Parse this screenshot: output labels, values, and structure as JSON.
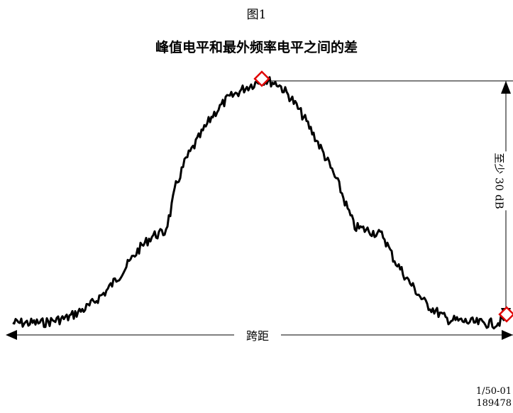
{
  "figure": {
    "label": "图1",
    "title": "峰值电平和最外频率电平之间的差",
    "span_label": "跨距",
    "level_label": "至少 30 dB",
    "ref_code_line1": "1/50-01",
    "ref_code_line2": "189478"
  },
  "colors": {
    "trace": "#000000",
    "marker": "#e00000",
    "line": "#000000"
  },
  "icons": {
    "peak_marker": "red-diamond-icon",
    "edge_marker": "red-diamond-icon",
    "arrowheads": "triangle-arrow-icon"
  }
}
